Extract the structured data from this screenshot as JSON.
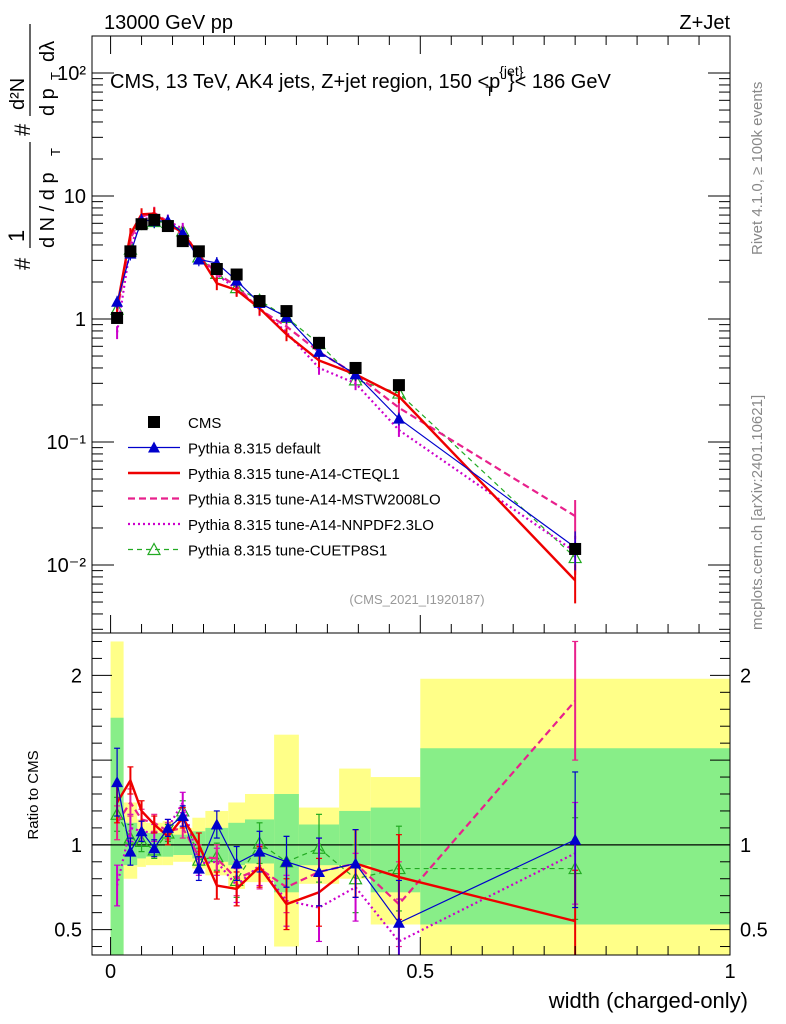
{
  "header": {
    "left": "13000 GeV pp",
    "right": "Z+Jet"
  },
  "side_labels": {
    "rivet": "Rivet 4.1.0, ≥ 100k events",
    "mcplots": "mcplots.cern.ch [arXiv:2401.10621]"
  },
  "chart_data": [
    {
      "panel": "main",
      "type": "line",
      "title": "CMS, 13 TeV, AK4 jets, Z+jet region, 150 <p_T^{jet}< 186 GeV",
      "title_parts": {
        "prefix": "CMS, 13 TeV, AK4 jets, Z+jet region, 150 <p",
        "sup": "{jet}",
        "sub": "T",
        "suffix": "}< 186 GeV"
      },
      "ylabel_parts": {
        "hash1": "#",
        "one": "1",
        "dn": "d N / d p",
        "t": "T",
        "hash2": "#",
        "d2n": "d²N",
        "dpt": "d p",
        "dl": "dλ"
      },
      "yscale": "log",
      "ylim": [
        0.0028,
        200
      ],
      "xlim": [
        -0.03,
        1.0
      ],
      "yticks": [
        {
          "value": 0.01,
          "label": "10⁻²"
        },
        {
          "value": 0.1,
          "label": "10⁻¹"
        },
        {
          "value": 1,
          "label": "1"
        },
        {
          "value": 10,
          "label": "10"
        },
        {
          "value": 100,
          "label": "10²"
        }
      ],
      "watermark": "(CMS_2021_I1920187)",
      "x": [
        0.0105,
        0.032,
        0.05,
        0.0705,
        0.0925,
        0.1165,
        0.1425,
        0.1715,
        0.2035,
        0.2405,
        0.284,
        0.3365,
        0.3955,
        0.4655,
        0.75
      ],
      "series": [
        {
          "name": "CMS",
          "style": "data",
          "color": "#000000",
          "values": [
            1.02,
            3.55,
            5.9,
            6.4,
            5.7,
            4.3,
            3.55,
            2.55,
            2.3,
            1.4,
            1.16,
            0.64,
            0.4,
            0.29,
            0.0135
          ]
        },
        {
          "name": "Pythia 8.315 default",
          "style": "default",
          "color": "#0000cc",
          "values": [
            1.38,
            3.4,
            6.4,
            6.25,
            6.3,
            5.0,
            3.05,
            2.85,
            2.05,
            1.35,
            1.04,
            0.54,
            0.355,
            0.155,
            0.0139
          ]
        },
        {
          "name": "Pythia 8.315 tune-A14-CTEQL1",
          "style": "solid",
          "color": "#ee0000",
          "values": [
            1.25,
            4.9,
            7.1,
            7.2,
            6.0,
            5.0,
            3.35,
            1.95,
            1.72,
            1.22,
            0.75,
            0.46,
            0.355,
            0.235,
            0.0075
          ]
        },
        {
          "name": "Pythia 8.315 tune-A14-MSTW2008LO",
          "style": "dashed",
          "color": "#e8208c",
          "values": [
            1.15,
            4.5,
            6.8,
            7.3,
            6.2,
            4.7,
            3.3,
            2.35,
            1.85,
            1.2,
            0.87,
            0.54,
            0.355,
            0.19,
            0.025
          ]
        },
        {
          "name": "Pythia 8.315 tune-A14-NNPDF2.3LO",
          "style": "dotted",
          "color": "#cc00cc",
          "values": [
            0.78,
            3.9,
            6.4,
            6.85,
            6.3,
            5.4,
            3.15,
            2.3,
            1.75,
            1.23,
            0.78,
            0.4,
            0.3,
            0.125,
            0.0128
          ]
        },
        {
          "name": "Pythia 8.315 tune-CUETP8S1",
          "style": "triangle-open",
          "color": "#22aa22",
          "values": [
            1.2,
            3.7,
            6.0,
            6.2,
            6.1,
            5.2,
            3.2,
            2.35,
            1.8,
            1.42,
            1.03,
            0.63,
            0.32,
            0.25,
            0.0115
          ]
        }
      ],
      "legend_position": "lower-left"
    },
    {
      "panel": "ratio",
      "type": "line",
      "ylabel": "Ratio to CMS",
      "ylim": [
        0.35,
        2.25
      ],
      "xlim": [
        -0.03,
        1.0
      ],
      "yticks": [
        {
          "value": 0.5,
          "label": "0.5"
        },
        {
          "value": 1,
          "label": "1"
        },
        {
          "value": 2,
          "label": "2"
        }
      ],
      "xticks": [
        {
          "value": 0,
          "label": "0"
        },
        {
          "value": 0.5,
          "label": "0.5"
        },
        {
          "value": 1,
          "label": "1"
        }
      ],
      "xlabel": "width (charged-only)",
      "bin_edges": [
        0,
        0.021,
        0.043,
        0.057,
        0.084,
        0.101,
        0.132,
        0.153,
        0.19,
        0.217,
        0.264,
        0.304,
        0.369,
        0.42,
        0.5,
        1.0
      ],
      "band_yellow": [
        [
          0.35,
          2.2
        ],
        [
          0.8,
          1.25
        ],
        [
          0.87,
          1.15
        ],
        [
          0.88,
          1.13
        ],
        [
          0.88,
          1.14
        ],
        [
          0.9,
          1.1
        ],
        [
          0.86,
          1.16
        ],
        [
          0.82,
          1.2
        ],
        [
          0.74,
          1.25
        ],
        [
          0.78,
          1.3
        ],
        [
          0.4,
          1.65
        ],
        [
          0.77,
          1.22
        ],
        [
          0.8,
          1.45
        ],
        [
          0.53,
          1.4
        ],
        [
          0.35,
          1.98
        ]
      ],
      "band_green": [
        [
          0.35,
          1.75
        ],
        [
          0.88,
          1.13
        ],
        [
          0.92,
          1.08
        ],
        [
          0.93,
          1.07
        ],
        [
          0.93,
          1.08
        ],
        [
          0.94,
          1.06
        ],
        [
          0.92,
          1.08
        ],
        [
          0.9,
          1.1
        ],
        [
          0.88,
          1.13
        ],
        [
          0.89,
          1.15
        ],
        [
          0.72,
          1.3
        ],
        [
          0.88,
          1.12
        ],
        [
          0.88,
          1.2
        ],
        [
          0.72,
          1.22
        ],
        [
          0.53,
          1.57
        ]
      ],
      "series": [
        {
          "name": "Pythia 8.315 default",
          "values": [
            1.37,
            0.96,
            1.08,
            0.98,
            1.1,
            1.17,
            0.86,
            1.12,
            0.89,
            0.96,
            0.9,
            0.84,
            0.89,
            0.54,
            1.03
          ],
          "err": [
            0.2,
            0.08,
            0.06,
            0.05,
            0.05,
            0.06,
            0.07,
            0.08,
            0.1,
            0.12,
            0.15,
            0.2,
            0.2,
            0.25,
            0.4
          ]
        },
        {
          "name": "Pythia 8.315 tune-A14-CTEQL1",
          "values": [
            1.25,
            1.38,
            1.2,
            1.12,
            1.05,
            1.16,
            1.0,
            0.76,
            0.74,
            0.87,
            0.65,
            0.72,
            0.89,
            0.81,
            0.55
          ],
          "err": [
            0.12,
            0.08,
            0.06,
            0.05,
            0.05,
            0.06,
            0.07,
            0.08,
            0.1,
            0.12,
            0.15,
            0.2,
            0.2,
            0.25,
            0.3
          ]
        },
        {
          "name": "Pythia 8.315 tune-A14-MSTW2008LO",
          "values": [
            1.13,
            1.25,
            1.15,
            1.13,
            1.08,
            1.1,
            0.93,
            0.92,
            0.8,
            0.86,
            0.75,
            0.84,
            0.89,
            0.65,
            1.85
          ],
          "err": [
            0.1,
            0.08,
            0.06,
            0.05,
            0.05,
            0.06,
            0.07,
            0.08,
            0.1,
            0.12,
            0.15,
            0.2,
            0.2,
            0.25,
            0.35
          ]
        },
        {
          "name": "Pythia 8.315 tune-A14-NNPDF2.3LO",
          "values": [
            0.76,
            1.1,
            1.08,
            1.07,
            1.1,
            1.25,
            0.89,
            0.9,
            0.76,
            0.88,
            0.67,
            0.63,
            0.75,
            0.43,
            0.95
          ],
          "err": [
            0.12,
            0.08,
            0.06,
            0.05,
            0.05,
            0.06,
            0.07,
            0.08,
            0.1,
            0.12,
            0.15,
            0.2,
            0.2,
            0.25,
            0.3
          ]
        },
        {
          "name": "Pythia 8.315 tune-CUETP8S1",
          "values": [
            1.18,
            1.04,
            1.02,
            0.97,
            1.07,
            1.2,
            0.91,
            0.93,
            0.79,
            1.01,
            0.9,
            0.98,
            0.8,
            0.86,
            0.86
          ],
          "err": [
            0.1,
            0.08,
            0.06,
            0.05,
            0.05,
            0.06,
            0.07,
            0.08,
            0.1,
            0.12,
            0.15,
            0.2,
            0.2,
            0.25,
            0.3
          ]
        }
      ]
    }
  ]
}
